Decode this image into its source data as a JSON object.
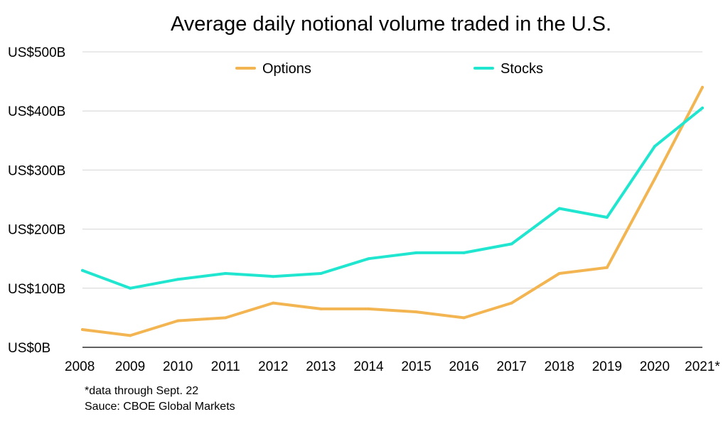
{
  "chart_data": {
    "type": "line",
    "title": "Average daily notional volume traded in the U.S.",
    "xlabel": "",
    "ylabel": "",
    "categories": [
      "2008",
      "2009",
      "2010",
      "2011",
      "2012",
      "2013",
      "2014",
      "2015",
      "2016",
      "2017",
      "2018",
      "2019",
      "2020",
      "2021*"
    ],
    "ylim": [
      0,
      500
    ],
    "yticks": [
      0,
      100,
      200,
      300,
      400,
      500
    ],
    "ytick_labels": [
      "US$0B",
      "US$100B",
      "US$200B",
      "US$300B",
      "US$400B",
      "US$500B"
    ],
    "grid": true,
    "legend_position": "top",
    "series": [
      {
        "name": "Options",
        "color": "#F2B552",
        "values": [
          30,
          20,
          45,
          50,
          75,
          65,
          65,
          60,
          50,
          75,
          125,
          135,
          285,
          440
        ]
      },
      {
        "name": "Stocks",
        "color": "#20E6D0",
        "values": [
          130,
          100,
          115,
          125,
          120,
          125,
          150,
          160,
          160,
          175,
          235,
          220,
          340,
          405
        ]
      }
    ]
  },
  "notes": {
    "footnote": "*data through Sept. 22",
    "source": "Sauce: CBOE Global Markets"
  }
}
